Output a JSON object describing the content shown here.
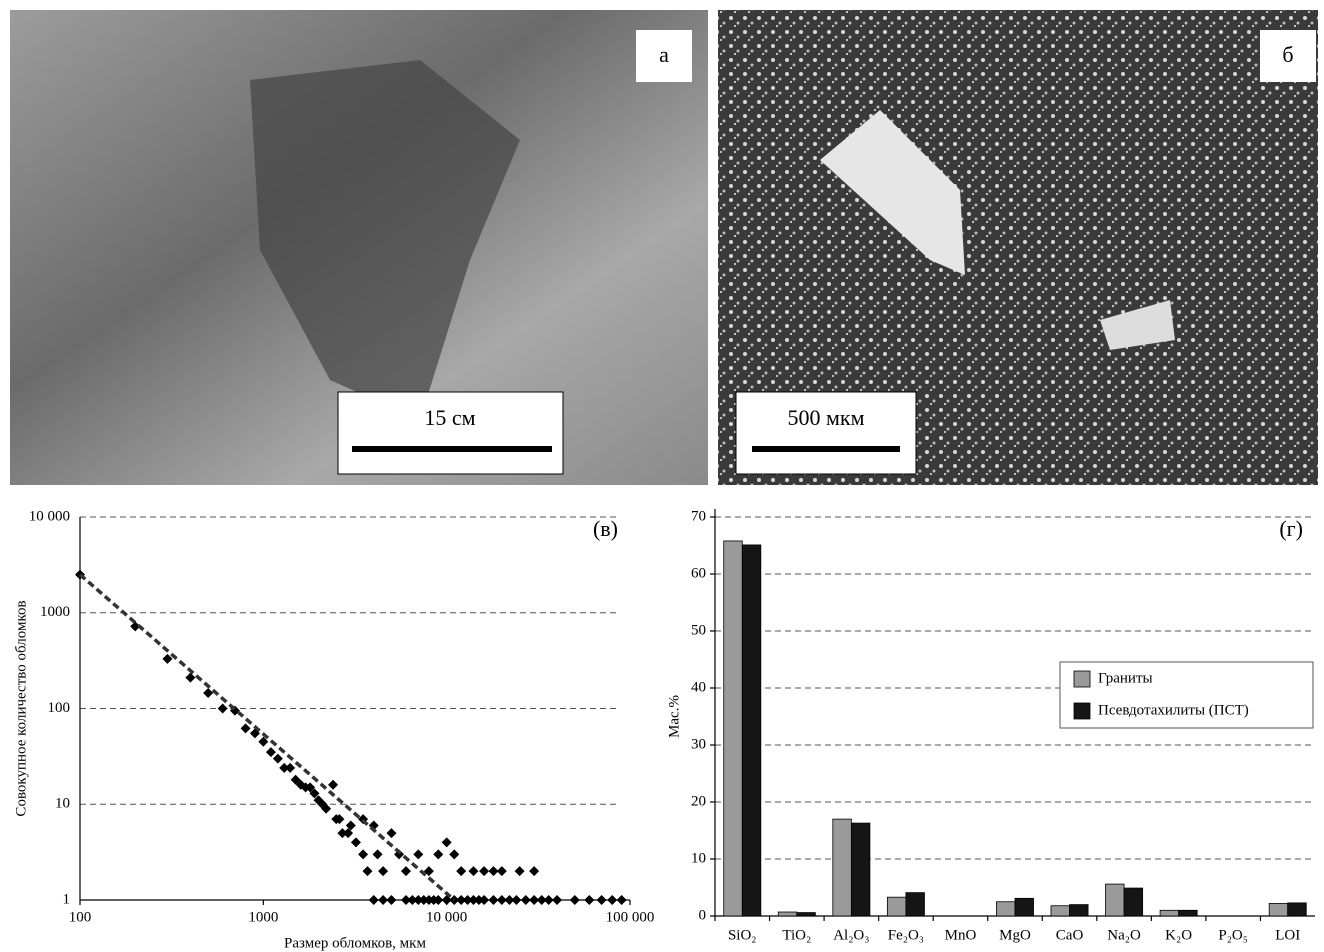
{
  "photos": [
    {
      "label": "а",
      "scale_bar": "15 см"
    },
    {
      "label": "б",
      "scale_bar": "500 мкм"
    }
  ],
  "chart_data": [
    {
      "type": "scatter",
      "title": "(в)",
      "x_label": "Размер обломков, мкм",
      "y_label": "Совокупное количество обломков",
      "xscale": "log",
      "yscale": "log",
      "grid": true,
      "color": "#000000",
      "xlim": [
        100,
        100000
      ],
      "ylim": [
        1,
        10000
      ],
      "xticks": [
        100,
        1000,
        {
          "value": 10000,
          "label": "10 000"
        },
        {
          "value": 100000,
          "label": "100 000"
        }
      ],
      "yticks": [
        1,
        10,
        100,
        1000,
        {
          "value": 10000,
          "label": "10 000"
        }
      ],
      "x": [
        100,
        200,
        300,
        400,
        500,
        600,
        700,
        800,
        900,
        1000,
        1100,
        1200,
        1300,
        1400,
        1500,
        1600,
        1700,
        1800,
        1900,
        2000,
        2100,
        2200,
        2400,
        2500,
        2600,
        2700,
        2900,
        3000,
        3200,
        3500,
        3500,
        3700,
        4000,
        4200,
        4500,
        5000,
        5500,
        6000,
        7000,
        8000,
        9000,
        10000,
        11000,
        12000,
        14000,
        16000,
        18000,
        20000,
        25000,
        30000,
        4000,
        4500,
        5000,
        6000,
        6500,
        7000,
        7500,
        8000,
        8500,
        9000,
        10000,
        11000,
        12000,
        13000,
        14000,
        15000,
        16000,
        18000,
        20000,
        22000,
        24000,
        27000,
        30000,
        33000,
        36000,
        40000,
        50000,
        60000,
        70000,
        80000,
        90000
      ],
      "y": [
        2500,
        720,
        330,
        210,
        145,
        100,
        95,
        62,
        55,
        45,
        35,
        30,
        24,
        24,
        18,
        16,
        15,
        15,
        13,
        11,
        10,
        9,
        16,
        7,
        7,
        5,
        5,
        6,
        4,
        7,
        3,
        2,
        6,
        3,
        2,
        5,
        3,
        2,
        3,
        2,
        3,
        4,
        3,
        2,
        2,
        2,
        2,
        2,
        2,
        2,
        1,
        1,
        1,
        1,
        1,
        1,
        1,
        1,
        1,
        1,
        1,
        1,
        1,
        1,
        1,
        1,
        1,
        1,
        1,
        1,
        1,
        1,
        1,
        1,
        1,
        1,
        1,
        1,
        1,
        1,
        1
      ],
      "trend_line": {
        "x": [
          100,
          11000
        ],
        "y": [
          2500,
          1
        ]
      }
    },
    {
      "type": "bar",
      "title": "(г)",
      "y_label": "Мас.%",
      "grid": true,
      "legend": "right",
      "ylim": [
        0,
        70
      ],
      "yticks": [
        0,
        10,
        20,
        30,
        40,
        50,
        60,
        70
      ],
      "categories": [
        "SiO₂",
        "TiO₂",
        "Al₂O₃",
        "Fe₂O₃",
        "MnO",
        "MgO",
        "CaO",
        "Na₂O",
        "K₂O",
        "P₂O₅",
        "LOI"
      ],
      "series": [
        {
          "name": "Граниты",
          "color": "#9a9a9a",
          "values": [
            65.8,
            0.7,
            17.0,
            3.3,
            0,
            2.5,
            1.8,
            5.6,
            1.0,
            0,
            2.2
          ]
        },
        {
          "name": "Псевдотахилиты (ПСТ)",
          "color": "#151515",
          "values": [
            65.1,
            0.6,
            16.3,
            4.1,
            0,
            3.1,
            2.0,
            4.9,
            1.0,
            0,
            2.3
          ]
        }
      ]
    }
  ]
}
